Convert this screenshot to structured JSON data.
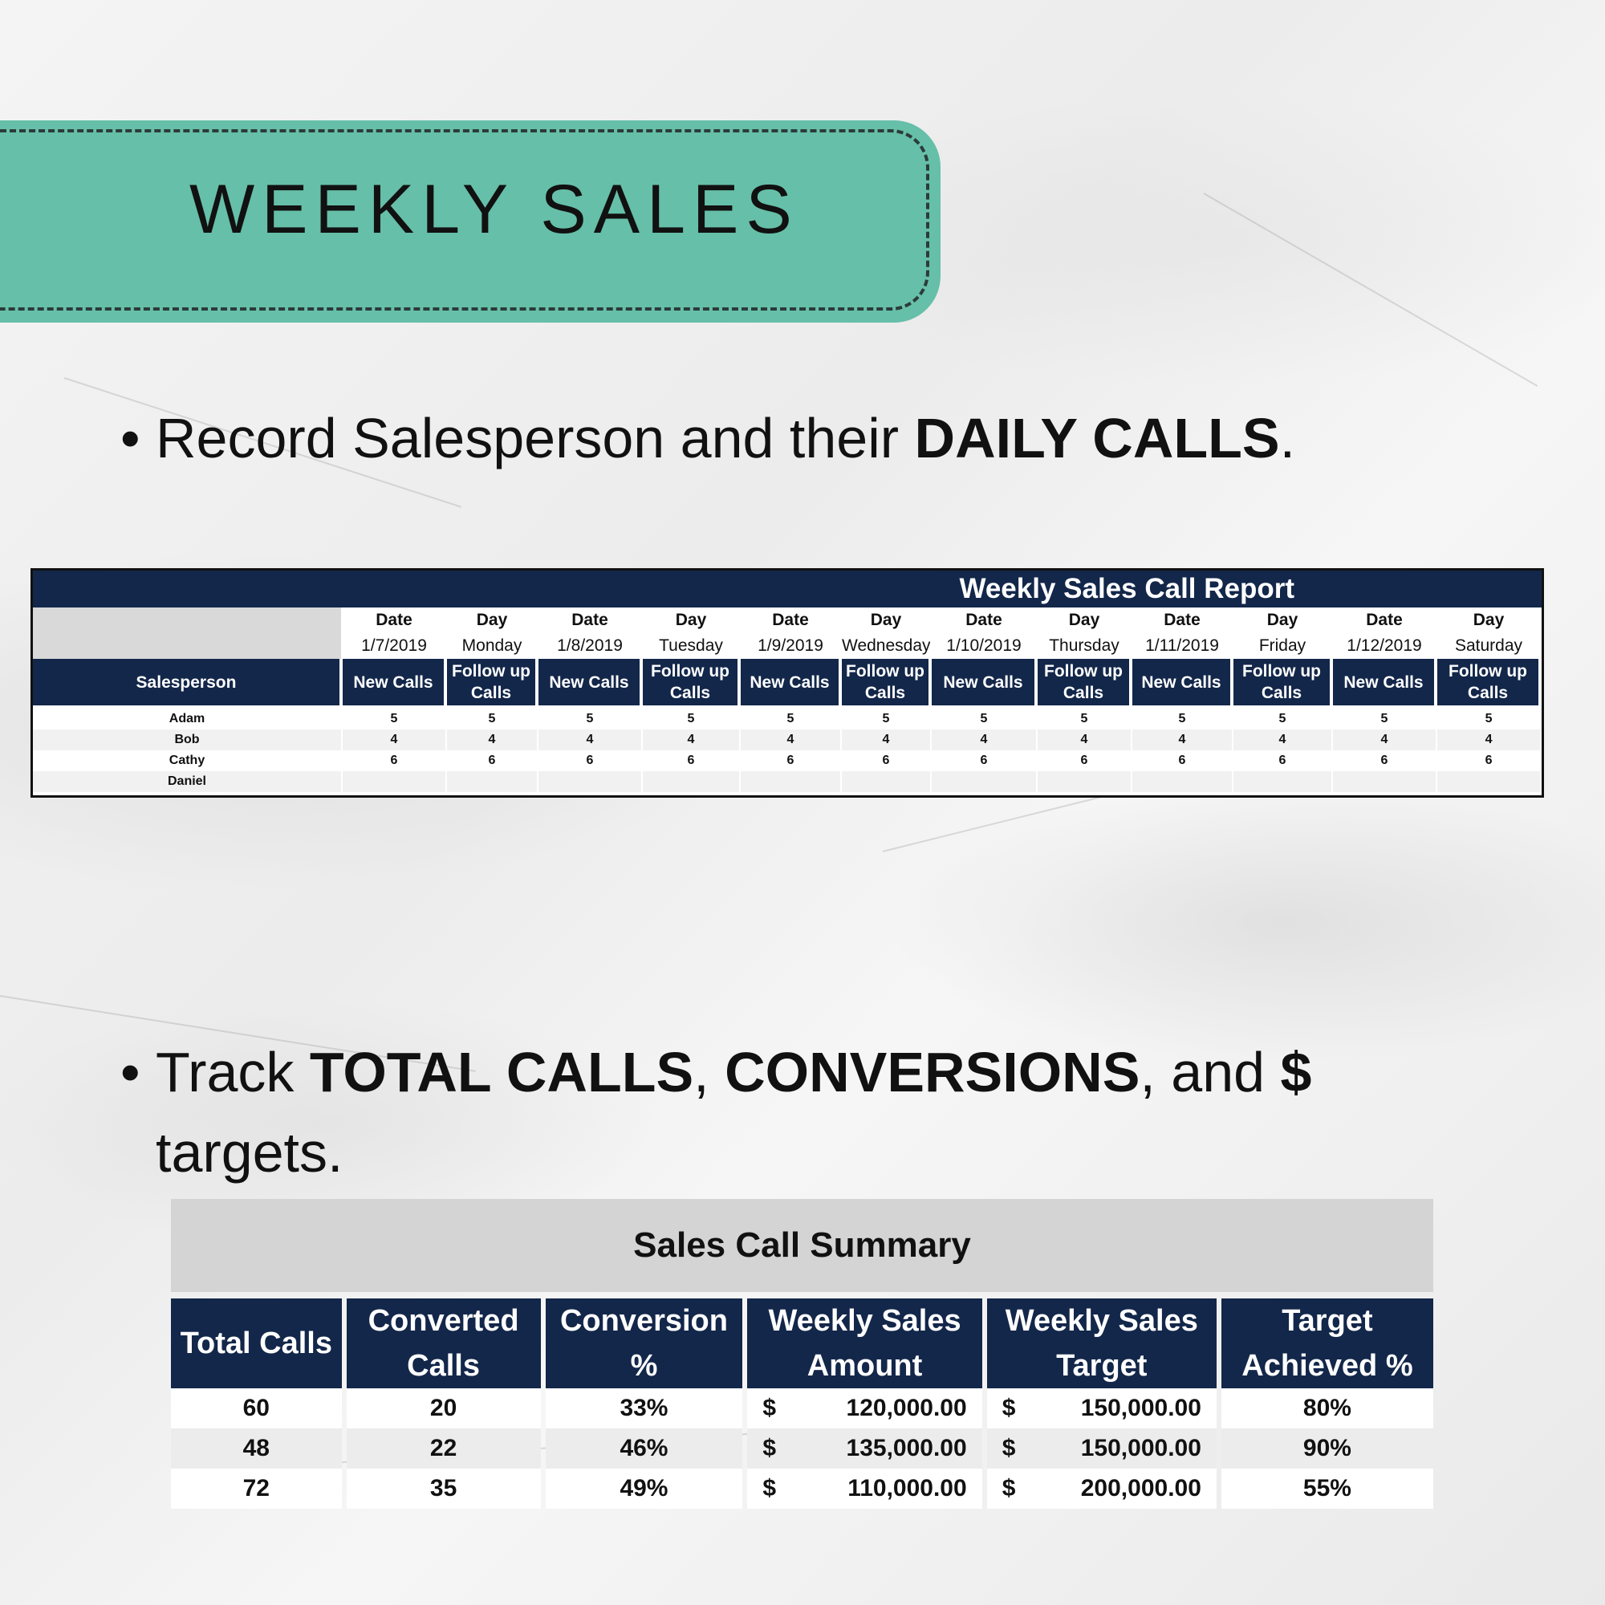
{
  "banner": {
    "title": "WEEKLY SALES"
  },
  "bullet1": {
    "prefix": "Record Salesperson and their ",
    "bold": "DAILY CALLS",
    "suffix": "."
  },
  "bullet2": {
    "prefix": "Track ",
    "bold1": "TOTAL CALLS",
    "sep1": ", ",
    "bold2": "CONVERSIONS",
    "sep2": ", and ",
    "bold3": "$",
    "line2": "targets."
  },
  "weekly_report": {
    "title": "Weekly Sales Call Report",
    "date_label": "Date",
    "day_label": "Day",
    "dates": [
      "1/7/2019",
      "1/8/2019",
      "1/9/2019",
      "1/10/2019",
      "1/11/2019",
      "1/12/2019"
    ],
    "days": [
      "Monday",
      "Tuesday",
      "Wednesday",
      "Thursday",
      "Friday",
      "Saturday"
    ],
    "salesperson_header": "Salesperson",
    "new_calls_label": "New Calls",
    "follow_up_label": "Follow up Calls",
    "rows": [
      {
        "name": "Adam",
        "values": [
          "5",
          "5",
          "5",
          "5",
          "5",
          "5",
          "5",
          "5",
          "5",
          "5",
          "5",
          "5"
        ]
      },
      {
        "name": "Bob",
        "values": [
          "4",
          "4",
          "4",
          "4",
          "4",
          "4",
          "4",
          "4",
          "4",
          "4",
          "4",
          "4"
        ]
      },
      {
        "name": "Cathy",
        "values": [
          "6",
          "6",
          "6",
          "6",
          "6",
          "6",
          "6",
          "6",
          "6",
          "6",
          "6",
          "6"
        ]
      },
      {
        "name": "Daniel",
        "values": [
          "",
          "",
          "",
          "",
          "",
          "",
          "",
          "",
          "",
          "",
          "",
          ""
        ]
      }
    ]
  },
  "summary": {
    "title": "Sales Call Summary",
    "headers": [
      "Total Calls",
      "Converted Calls",
      "Conversion %",
      "Weekly Sales Amount",
      "Weekly Sales Target",
      "Target Achieved %"
    ],
    "currency_symbol": "$",
    "rows": [
      {
        "total_calls": "60",
        "converted_calls": "20",
        "conversion_pct": "33%",
        "sales_amount": "120,000.00",
        "sales_target": "150,000.00",
        "target_achieved": "80%"
      },
      {
        "total_calls": "48",
        "converted_calls": "22",
        "conversion_pct": "46%",
        "sales_amount": "135,000.00",
        "sales_target": "150,000.00",
        "target_achieved": "90%"
      },
      {
        "total_calls": "72",
        "converted_calls": "35",
        "conversion_pct": "49%",
        "sales_amount": "110,000.00",
        "sales_target": "200,000.00",
        "target_achieved": "55%"
      }
    ]
  }
}
